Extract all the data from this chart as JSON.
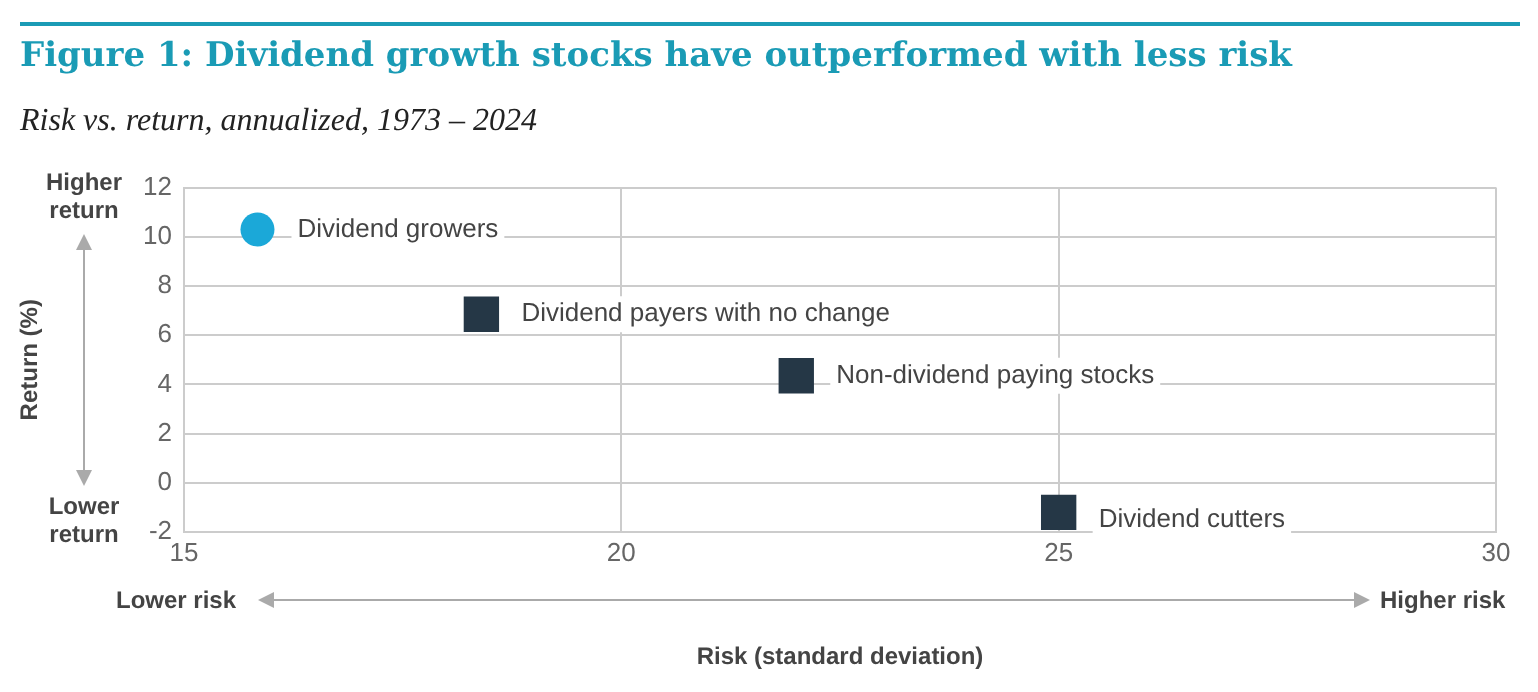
{
  "chart_data": {
    "type": "scatter",
    "title": "Figure 1: Dividend growth stocks have outperformed with less risk",
    "subtitle": "Risk vs. return, annualized, 1973 – 2024",
    "xlabel": "Risk (standard deviation)",
    "ylabel": "Return (%)",
    "xlim": [
      15,
      30
    ],
    "xticks": [
      15,
      20,
      25,
      30
    ],
    "ylim": [
      -2,
      12
    ],
    "yticks": [
      -2,
      0,
      2,
      4,
      6,
      8,
      10,
      12
    ],
    "grid": true,
    "legend": false,
    "series": [
      {
        "name": "Dividend growers",
        "color": "#1ba8d8",
        "marker": "circle",
        "x": [
          15.84
        ],
        "values": [
          10.3
        ]
      },
      {
        "name": "Dividend payers with no change",
        "color": "#253746",
        "marker": "square",
        "x": [
          18.4
        ],
        "values": [
          6.85
        ]
      },
      {
        "name": "Non-dividend paying stocks",
        "color": "#253746",
        "marker": "square",
        "x": [
          22.0
        ],
        "values": [
          4.35
        ]
      },
      {
        "name": "Dividend cutters",
        "color": "#253746",
        "marker": "square",
        "x": [
          25.0
        ],
        "values": [
          -1.2
        ]
      }
    ],
    "annotations": [
      "Higher return",
      "Lower return",
      "Lower risk",
      "Higher risk"
    ]
  }
}
